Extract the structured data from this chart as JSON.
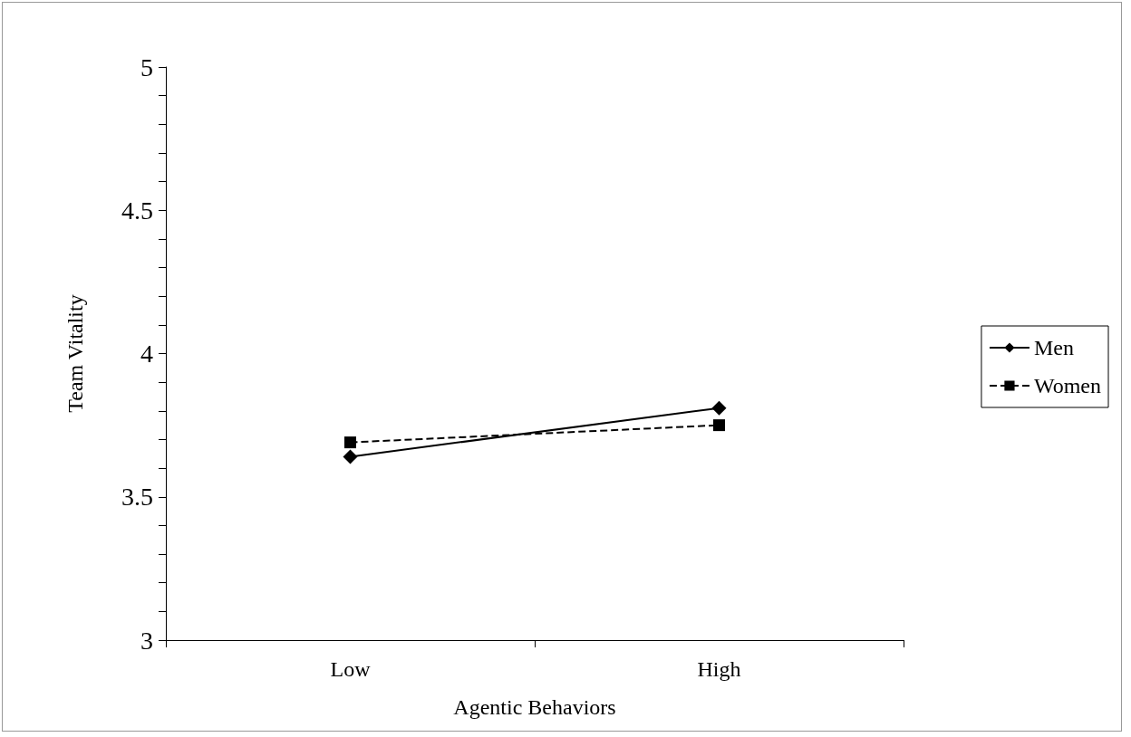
{
  "chart_data": {
    "type": "line",
    "xlabel": "Agentic Behaviors",
    "ylabel": "Team Vitality",
    "categories": [
      "Low",
      "High"
    ],
    "series": [
      {
        "name": "Men",
        "color": "#000000",
        "values": [
          3.64,
          3.81
        ],
        "marker": "diamond",
        "line_style": "solid"
      },
      {
        "name": "Women",
        "color": "#000000",
        "values": [
          3.69,
          3.75
        ],
        "marker": "square",
        "line_style": "dashed"
      }
    ],
    "ylim": [
      3,
      5
    ],
    "yticks": [
      3,
      {
        "value": 3.1,
        "label": null
      },
      {
        "value": 3.2,
        "label": null
      },
      {
        "value": 3.3,
        "label": null
      },
      {
        "value": 3.4,
        "label": null
      },
      3.5,
      {
        "value": 3.6,
        "label": null
      },
      {
        "value": 3.7,
        "label": null
      },
      {
        "value": 3.8,
        "label": null
      },
      {
        "value": 3.9,
        "label": null
      },
      4,
      {
        "value": 4.1,
        "label": null
      },
      {
        "value": 4.2,
        "label": null
      },
      {
        "value": 4.3,
        "label": null
      },
      {
        "value": 4.4,
        "label": null
      },
      4.5,
      {
        "value": 4.6,
        "label": null
      },
      {
        "value": 4.7,
        "label": null
      },
      {
        "value": 4.8,
        "label": null
      },
      {
        "value": 4.9,
        "label": null
      },
      5
    ],
    "grid": false,
    "legend": "right"
  }
}
